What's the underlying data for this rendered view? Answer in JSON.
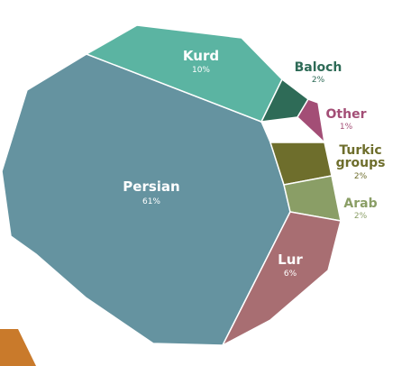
{
  "chart_data": {
    "type": "pie",
    "title": "",
    "slices": [
      {
        "label": "Persian",
        "value": 61,
        "pct_text": "61%",
        "color": "#6593A0",
        "label_color": "#ffffff"
      },
      {
        "label": "Kurd",
        "value": 10,
        "pct_text": "10%",
        "color": "#5BB4A2",
        "label_color": "#ffffff"
      },
      {
        "label": "Baloch",
        "value": 2,
        "pct_text": "2%",
        "color": "#2E6B57",
        "label_color": "#2E6B57"
      },
      {
        "label": "Other",
        "value": 1,
        "pct_text": "1%",
        "color": "#A34E76",
        "label_color": "#A34E76"
      },
      {
        "label": "Turkic groups",
        "value": 2,
        "pct_text": "2%",
        "color": "#6E6E2C",
        "label_color": "#6E6E2C"
      },
      {
        "label": "Arab",
        "value": 2,
        "pct_text": "2%",
        "color": "#8A9E66",
        "label_color": "#8A9E66"
      },
      {
        "label": "Lur",
        "value": 6,
        "pct_text": "6%",
        "color": "#A86E72",
        "label_color": "#ffffff"
      }
    ],
    "grid": false,
    "legend": "none"
  },
  "accent_color": "#C97A2B"
}
